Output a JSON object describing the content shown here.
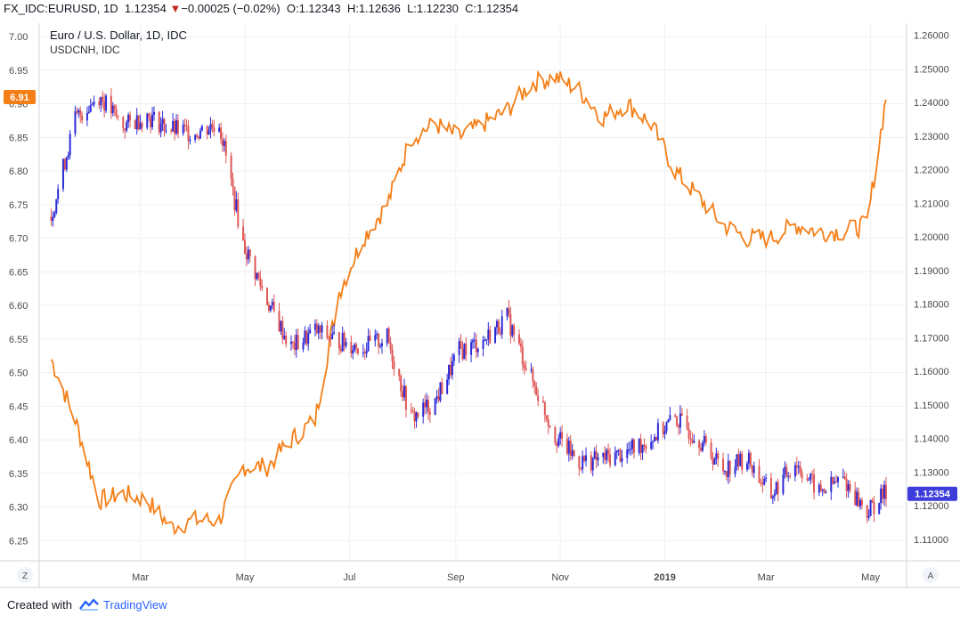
{
  "header": {
    "symbol": "FX_IDC:EURUSD, 1D",
    "last": "1.12354",
    "change_arrow": "▼",
    "change": "−0.00025 (−0.02%)",
    "o_label": "O:",
    "o": "1.12343",
    "h_label": "H:",
    "h": "1.12636",
    "l_label": "L:",
    "l": "1.12230",
    "c_label": "C:",
    "c": "1.12354"
  },
  "legend": {
    "main": "Euro / U.S. Dollar, 1D, IDC",
    "compare": "USDCNH, IDC"
  },
  "footer": {
    "created_with": "Created with",
    "brand": "TradingView"
  },
  "axis_buttons": {
    "left": "Z",
    "right": "A"
  },
  "colors": {
    "candle_up": "#2b2bd9",
    "candle_down": "#e05555",
    "compare_line": "#f57f17",
    "grid": "#eef0f3",
    "price_tag": "#3d3ddb",
    "compare_tag": "#f57f17"
  },
  "chart_data": {
    "type": "line",
    "x_axis": {
      "ticks": [
        "Mar",
        "May",
        "Jul",
        "Sep",
        "Nov",
        "2019",
        "Mar",
        "May"
      ]
    },
    "left_axis": {
      "label": "USDCNH",
      "range": [
        6.22,
        7.02
      ],
      "ticks": [
        "7.00",
        "6.95",
        "6.90",
        "6.85",
        "6.80",
        "6.75",
        "6.70",
        "6.65",
        "6.60",
        "6.55",
        "6.50",
        "6.45",
        "6.40",
        "6.35",
        "6.30",
        "6.25"
      ],
      "current_tag": "6.91"
    },
    "right_axis": {
      "label": "EURUSD",
      "range": [
        1.1036,
        1.2636
      ],
      "ticks": [
        "1.26000",
        "1.25000",
        "1.24000",
        "1.23000",
        "1.22000",
        "1.21000",
        "1.20000",
        "1.19000",
        "1.18000",
        "1.17000",
        "1.16000",
        "1.15000",
        "1.14000",
        "1.13000",
        "1.12000",
        "1.11000"
      ],
      "current_tag": "1.12354"
    },
    "grid": true,
    "series": [
      {
        "name": "Euro / U.S. Dollar, 1D, IDC",
        "type": "candlestick",
        "axis": "right",
        "x": [
          "2018-01-08",
          "2018-01-22",
          "2018-02-05",
          "2018-02-19",
          "2018-03-05",
          "2018-03-19",
          "2018-04-02",
          "2018-04-16",
          "2018-04-30",
          "2018-05-14",
          "2018-05-28",
          "2018-06-11",
          "2018-06-25",
          "2018-07-09",
          "2018-07-23",
          "2018-08-06",
          "2018-08-20",
          "2018-09-03",
          "2018-09-17",
          "2018-10-01",
          "2018-10-15",
          "2018-10-29",
          "2018-11-12",
          "2018-11-26",
          "2018-12-10",
          "2018-12-24",
          "2019-01-07",
          "2019-01-21",
          "2019-02-04",
          "2019-02-18",
          "2019-03-04",
          "2019-03-18",
          "2019-04-01",
          "2019-04-15",
          "2019-04-29",
          "2019-05-10"
        ],
        "values": [
          1.206,
          1.235,
          1.242,
          1.233,
          1.236,
          1.232,
          1.231,
          1.234,
          1.198,
          1.181,
          1.167,
          1.172,
          1.169,
          1.167,
          1.17,
          1.146,
          1.151,
          1.166,
          1.169,
          1.176,
          1.158,
          1.141,
          1.133,
          1.134,
          1.136,
          1.14,
          1.146,
          1.14,
          1.131,
          1.134,
          1.123,
          1.133,
          1.124,
          1.128,
          1.118,
          1.124
        ],
        "up_color": "#2b2bd9",
        "down_color": "#e05555"
      },
      {
        "name": "USDCNH, IDC",
        "type": "line",
        "axis": "left",
        "x": [
          "2018-01-08",
          "2018-01-22",
          "2018-02-05",
          "2018-02-19",
          "2018-03-05",
          "2018-03-19",
          "2018-04-02",
          "2018-04-16",
          "2018-04-30",
          "2018-05-14",
          "2018-05-28",
          "2018-06-11",
          "2018-06-25",
          "2018-07-09",
          "2018-07-23",
          "2018-08-06",
          "2018-08-20",
          "2018-09-03",
          "2018-09-17",
          "2018-10-01",
          "2018-10-15",
          "2018-10-29",
          "2018-11-12",
          "2018-11-26",
          "2018-12-10",
          "2018-12-24",
          "2019-01-07",
          "2019-01-21",
          "2019-02-04",
          "2019-02-18",
          "2019-03-04",
          "2019-03-18",
          "2019-04-01",
          "2019-04-15",
          "2019-04-29",
          "2019-05-10"
        ],
        "values": [
          6.52,
          6.43,
          6.31,
          6.32,
          6.31,
          6.27,
          6.28,
          6.28,
          6.36,
          6.36,
          6.4,
          6.43,
          6.62,
          6.7,
          6.75,
          6.85,
          6.87,
          6.85,
          6.87,
          6.89,
          6.93,
          6.94,
          6.92,
          6.88,
          6.9,
          6.87,
          6.8,
          6.76,
          6.72,
          6.7,
          6.7,
          6.72,
          6.71,
          6.71,
          6.72,
          6.91
        ],
        "color": "#f57f17"
      }
    ]
  }
}
